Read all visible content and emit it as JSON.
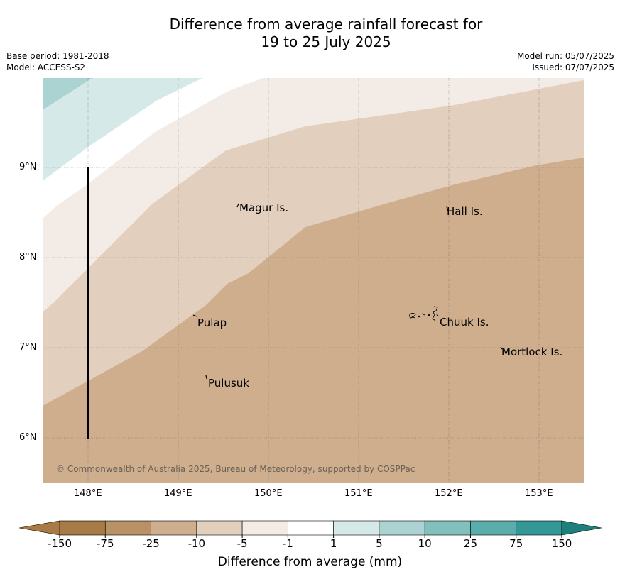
{
  "title": {
    "line1": "Difference from average rainfall forecast for",
    "line2": "19 to 25 July 2025"
  },
  "meta": {
    "base_period": "Base period: 1981-2018",
    "model": "Model: ACCESS-S2",
    "model_run": "Model run: 05/07/2025",
    "issued": "Issued: 07/07/2025"
  },
  "map": {
    "lon_labels": [
      "148°E",
      "149°E",
      "150°E",
      "151°E",
      "152°E",
      "153°E"
    ],
    "lat_labels": [
      "9°N",
      "8°N",
      "7°N",
      "6°N"
    ],
    "places": [
      "Magur Is.",
      "Hall Is.",
      "Pulap",
      "Chuuk Is.",
      "Mortlock Is.",
      "Pulusuk"
    ],
    "copyright": "© Commonwealth of Australia 2025, Bureau of Meteorology, supported by COSPPac"
  },
  "colorbar": {
    "ticks": [
      "-150",
      "-75",
      "-25",
      "-10",
      "-5",
      "-1",
      "1",
      "5",
      "10",
      "25",
      "75",
      "150"
    ],
    "colors": [
      "#a87a45",
      "#ba9066",
      "#cfae8d",
      "#e2cfbd",
      "#f3ebe5",
      "#ffffff",
      "#d5e9e8",
      "#abd3d2",
      "#82c0bd",
      "#5aadaa",
      "#349996",
      "#1e7f7b"
    ],
    "label": "Difference from average (mm)"
  }
}
